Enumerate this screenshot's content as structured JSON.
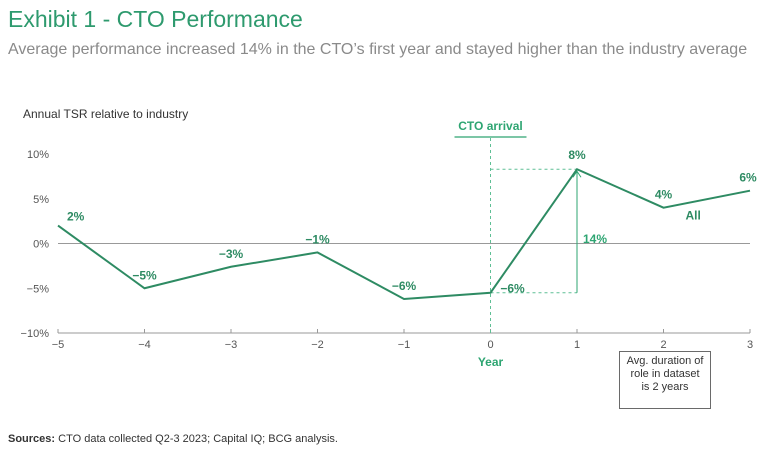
{
  "title": "Exhibit 1 - CTO Performance",
  "subtitle": "Average performance increased 14% in the CTO’s first year and stayed higher than the industry average",
  "source_label": "Sources:",
  "source_text": " CTO data collected Q2-3 2023; Capital IQ; BCG analysis.",
  "duration_note": "Avg. duration of\nrole in dataset\nis 2 years",
  "colors": {
    "line": "#2e8b63",
    "accent": "#2ea572",
    "axis": "#777777",
    "guide": "#5fbf95"
  },
  "chart_data": {
    "type": "line",
    "title": "Annual TSR relative to industry",
    "ylabel": "Annual TSR relative to industry",
    "xlabel": "Year",
    "xlim": [
      -5,
      3
    ],
    "ylim": [
      -10,
      10
    ],
    "x_ticks": [
      -5,
      -4,
      -3,
      -2,
      -1,
      0,
      1,
      2,
      3
    ],
    "x_tick_labels": [
      "−5",
      "−4",
      "−3",
      "−2",
      "−1",
      "0",
      "1",
      "2",
      "3"
    ],
    "y_ticks": [
      10,
      5,
      0,
      -5,
      -10
    ],
    "y_tick_labels": [
      "10%",
      "5%",
      "0%",
      "−5%",
      "−10%"
    ],
    "series": [
      {
        "name": "All",
        "x": [
          -5,
          -4,
          -3,
          -2,
          -1,
          0,
          1,
          2,
          3
        ],
        "y": [
          2,
          -5,
          -2.6,
          -1,
          -6.2,
          -5.5,
          8.3,
          4,
          5.9
        ]
      }
    ],
    "data_labels": [
      {
        "x": -5,
        "y": 2,
        "text": "2%"
      },
      {
        "x": -4,
        "y": -5,
        "text": "−5%"
      },
      {
        "x": -3,
        "y": -2.6,
        "text": "−3%"
      },
      {
        "x": -2,
        "y": -1,
        "text": "−1%"
      },
      {
        "x": -1,
        "y": -6.2,
        "text": "−6%"
      },
      {
        "x": 0,
        "y": -5.5,
        "text": "−6%"
      },
      {
        "x": 1,
        "y": 8.3,
        "text": "8%"
      },
      {
        "x": 2,
        "y": 4,
        "text": "4%"
      },
      {
        "x": 3,
        "y": 5.9,
        "text": "6%"
      }
    ],
    "annotations": {
      "cto_arrival_label": "CTO arrival",
      "cto_arrival_x": 0,
      "increase_label": "14%",
      "increase_from": -5.5,
      "increase_to": 8.3,
      "series_label": "All"
    },
    "grid": false
  }
}
